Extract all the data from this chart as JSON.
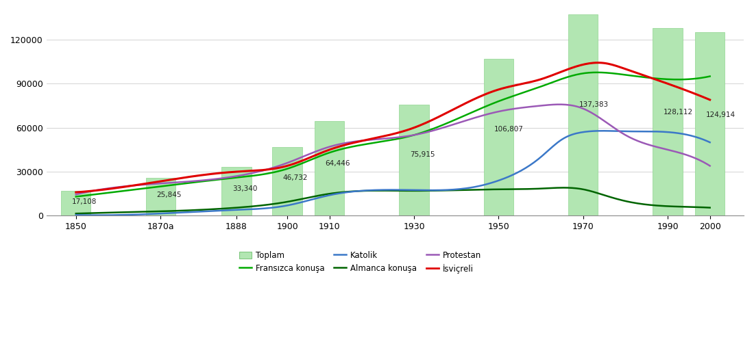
{
  "x_labels": [
    "1850",
    "1870a",
    "1888",
    "1900",
    "1910",
    "1930",
    "1950",
    "1970",
    "1990",
    "2000"
  ],
  "x_positions": [
    1850,
    1870,
    1888,
    1900,
    1910,
    1930,
    1950,
    1970,
    1990,
    2000
  ],
  "bar_values": [
    17108,
    25845,
    33340,
    46732,
    64446,
    75915,
    106807,
    137383,
    128112,
    124914
  ],
  "bar_labels": [
    "17,108",
    "25,845",
    "33,340",
    "46,732",
    "64,446",
    "75,915",
    "106,807",
    "137,383",
    "128,112",
    "124,914"
  ],
  "bar_color": "#b2e6b2",
  "bar_edge_color": "#90d490",
  "francais_x": [
    1850,
    1870,
    1888,
    1900,
    1910,
    1930,
    1950,
    1960,
    1970,
    1980,
    1990,
    2000
  ],
  "francais_y": [
    13000,
    20000,
    26000,
    32000,
    43000,
    55000,
    78000,
    88000,
    97000,
    96000,
    93000,
    95000
  ],
  "allemand_x": [
    1850,
    1870,
    1888,
    1900,
    1910,
    1930,
    1950,
    1960,
    1970,
    1975,
    1980,
    1990,
    2000
  ],
  "allemand_y": [
    1500,
    3000,
    5500,
    9500,
    15000,
    17000,
    18000,
    18500,
    18000,
    14000,
    10000,
    6500,
    5500
  ],
  "catholique_x": [
    1850,
    1870,
    1888,
    1900,
    1910,
    1930,
    1945,
    1950,
    1960,
    1965,
    1970,
    1980,
    1990,
    2000
  ],
  "catholique_y": [
    500,
    1500,
    4000,
    7000,
    14000,
    17500,
    20000,
    24000,
    40000,
    52000,
    57000,
    57500,
    57000,
    50000
  ],
  "protestant_x": [
    1850,
    1870,
    1888,
    1900,
    1910,
    1930,
    1950,
    1960,
    1970,
    1980,
    1990,
    2000
  ],
  "protestant_y": [
    14500,
    22000,
    27000,
    36000,
    47000,
    55000,
    71000,
    75000,
    73000,
    55000,
    45000,
    34000
  ],
  "suisse_x": [
    1850,
    1870,
    1888,
    1900,
    1910,
    1930,
    1950,
    1960,
    1970,
    1975,
    1980,
    1990,
    2000
  ],
  "suisse_y": [
    16000,
    23500,
    30000,
    34000,
    45000,
    60000,
    86000,
    93000,
    103000,
    104000,
    100000,
    90000,
    79000
  ],
  "ylim": [
    0,
    140000
  ],
  "yticks": [
    0,
    30000,
    60000,
    90000,
    120000
  ],
  "francais_color": "#00aa00",
  "allemand_color": "#006400",
  "catholique_color": "#3b78c8",
  "protestant_color": "#9b59b6",
  "suisse_color": "#e00000",
  "legend_toplam": "Toplam",
  "legend_francais": "Fransızca konuşa",
  "legend_catholique": "Katolik",
  "legend_allemand": "Almanca konuşa",
  "legend_protestant": "Protestan",
  "legend_suisse": "İsviçreli"
}
